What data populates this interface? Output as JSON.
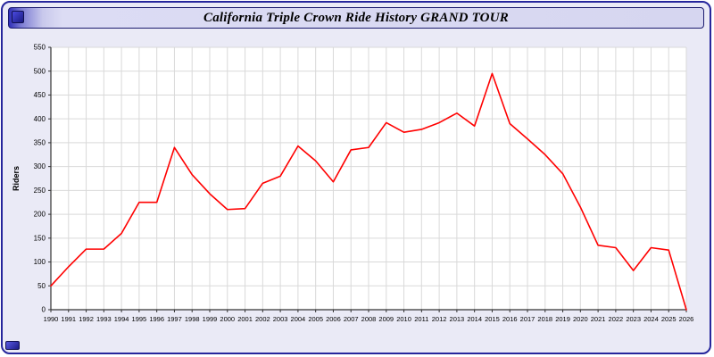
{
  "window": {
    "title": "California Triple Crown Ride History GRAND TOUR"
  },
  "colors": {
    "line": "#ff0000",
    "frame": "#26269c",
    "page_background": "#eaeaf6",
    "plot_background": "#ffffff",
    "grid": "#d9d9d9",
    "axis": "#333333",
    "tick_text": "#000000"
  },
  "chart_data": {
    "type": "line",
    "title": "California Triple Crown Ride History GRAND TOUR",
    "xlabel": "",
    "ylabel": "Riders",
    "ylim": [
      0,
      550
    ],
    "ytick_step": 50,
    "grid": true,
    "legend": "none",
    "x": [
      1990,
      1991,
      1992,
      1993,
      1994,
      1995,
      1996,
      1997,
      1998,
      1999,
      2000,
      2001,
      2002,
      2003,
      2004,
      2005,
      2006,
      2007,
      2008,
      2009,
      2010,
      2011,
      2012,
      2013,
      2014,
      2015,
      2016,
      2017,
      2018,
      2019,
      2020,
      2021,
      2022,
      2023,
      2024,
      2025,
      2026
    ],
    "series": [
      {
        "name": "Riders",
        "color": "#ff0000",
        "values": [
          50,
          90,
          127,
          127,
          160,
          225,
          225,
          340,
          283,
          243,
          210,
          212,
          265,
          280,
          343,
          312,
          268,
          335,
          340,
          392,
          372,
          378,
          392,
          412,
          385,
          495,
          390,
          358,
          325,
          285,
          215,
          135,
          130,
          82,
          130,
          125,
          0
        ]
      }
    ]
  }
}
